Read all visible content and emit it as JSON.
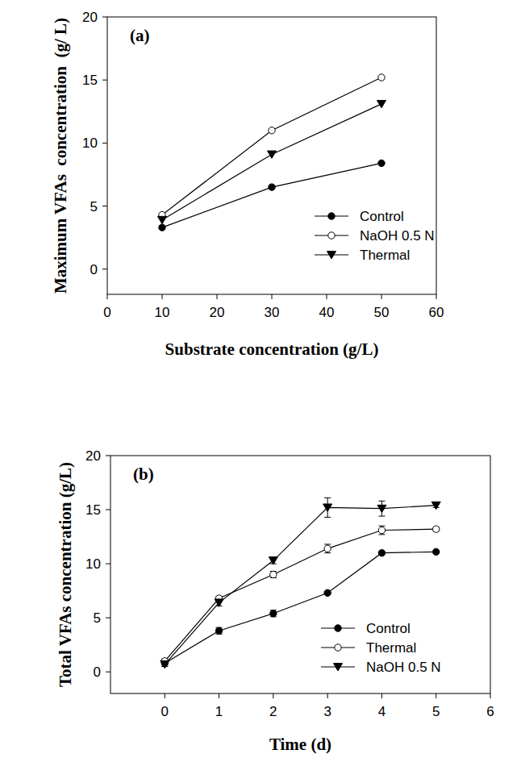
{
  "chart_data": [
    {
      "type": "line",
      "title": "(a)",
      "x_label": "Substrate concentration (g/L)",
      "y_label": "Maximum VFAs  concentration  (g/ L)",
      "x": [
        10,
        30,
        50
      ],
      "series": [
        {
          "name": "Control",
          "color": "#000000",
          "marker": "circle-filled",
          "values": [
            3.3,
            6.5,
            8.4
          ]
        },
        {
          "name": "NaOH 0.5 N",
          "color": "#000000",
          "marker": "circle-open",
          "values": [
            4.3,
            11.0,
            15.2
          ]
        },
        {
          "name": "Thermal",
          "color": "#000000",
          "marker": "triangle-down",
          "values": [
            3.9,
            9.1,
            13.1
          ]
        }
      ],
      "xlim": [
        0,
        60
      ],
      "xticks": [
        0,
        10,
        20,
        30,
        40,
        50,
        60
      ],
      "ylim": [
        -2,
        20
      ],
      "yticks": [
        0,
        5,
        10,
        15,
        20
      ],
      "legend": "lower right",
      "grid": false
    },
    {
      "type": "line",
      "title": "(b)",
      "x_label": "Time (d)",
      "y_label": "Total VFAs concentration (g/L)",
      "x": [
        0,
        1,
        2,
        3,
        4,
        5
      ],
      "series": [
        {
          "name": "Control",
          "color": "#000000",
          "marker": "circle-filled",
          "values": [
            0.8,
            3.8,
            5.4,
            7.3,
            11.0,
            11.1
          ],
          "errors": [
            0.3,
            0.3,
            0.3,
            0.1,
            0.1,
            0.1
          ]
        },
        {
          "name": "Thermal",
          "color": "#000000",
          "marker": "circle-open",
          "values": [
            1.0,
            6.8,
            9.0,
            11.4,
            13.1,
            13.2
          ],
          "errors": [
            0.2,
            0.2,
            0.3,
            0.4,
            0.4,
            0.2
          ]
        },
        {
          "name": "NaOH 0.5 N",
          "color": "#000000",
          "marker": "triangle-down",
          "values": [
            0.7,
            6.4,
            10.3,
            15.2,
            15.1,
            15.4
          ],
          "errors": [
            0.2,
            0.3,
            0.3,
            0.9,
            0.7,
            0.2
          ]
        }
      ],
      "xlim": [
        -1,
        6
      ],
      "xticks": [
        0,
        1,
        2,
        3,
        4,
        5,
        6
      ],
      "ylim": [
        -2,
        20
      ],
      "yticks": [
        0,
        5,
        10,
        15,
        20
      ],
      "legend": "lower right",
      "grid": false
    }
  ]
}
